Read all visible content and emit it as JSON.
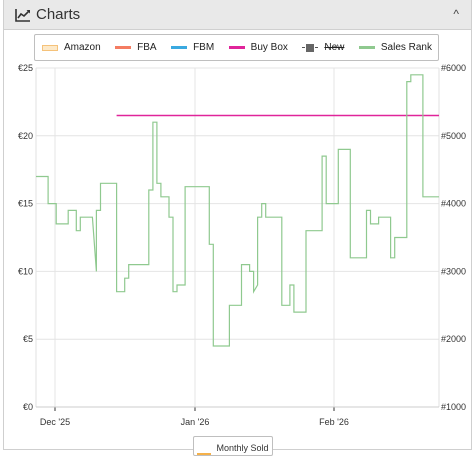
{
  "header": {
    "title": "Charts",
    "icon": "line-chart-icon",
    "collapse_icon": "chevron-up-icon",
    "collapse_glyph": "^"
  },
  "legend": [
    {
      "key": "amazon",
      "label": "Amazon",
      "color": "#f5c27a",
      "style": "box",
      "disabled": false
    },
    {
      "key": "fba",
      "label": "FBA",
      "color": "#f47c62",
      "style": "line",
      "disabled": false
    },
    {
      "key": "fbm",
      "label": "FBM",
      "color": "#3aa9e0",
      "style": "line",
      "disabled": false
    },
    {
      "key": "buybox",
      "label": "Buy Box",
      "color": "#e0249a",
      "style": "line",
      "disabled": false
    },
    {
      "key": "new",
      "label": "New",
      "color": "#666666",
      "style": "marker",
      "disabled": true
    },
    {
      "key": "salesrank",
      "label": "Sales Rank",
      "color": "#8fc98f",
      "style": "line",
      "disabled": false
    }
  ],
  "bottom_legend": {
    "label": "Monthly Sold",
    "color": "#f5b14a"
  },
  "chart_data": {
    "type": "line",
    "x_labels": [
      "Dec '25",
      "Jan '26",
      "Feb '26"
    ],
    "y_left": {
      "ticks": [
        "€0",
        "€5",
        "€10",
        "€15",
        "€20",
        "€25"
      ],
      "min": 0,
      "max": 25
    },
    "y_right": {
      "ticks": [
        "#1000",
        "#2000",
        "#3000",
        "#4000",
        "#5000",
        "#6000"
      ],
      "min": 1000,
      "max": 6000
    },
    "grid": true,
    "series": [
      {
        "name": "Buy Box",
        "color": "#e0249a",
        "axis": "left",
        "points": [
          [
            0.2,
            21.5
          ],
          [
            1.0,
            21.5
          ]
        ]
      },
      {
        "name": "Sales Rank",
        "color": "#8fc98f",
        "axis": "right",
        "points": [
          [
            0.0,
            4400
          ],
          [
            0.03,
            4400
          ],
          [
            0.03,
            4000
          ],
          [
            0.05,
            4000
          ],
          [
            0.05,
            3700
          ],
          [
            0.08,
            3700
          ],
          [
            0.08,
            3900
          ],
          [
            0.1,
            3900
          ],
          [
            0.1,
            3600
          ],
          [
            0.11,
            3600
          ],
          [
            0.11,
            3800
          ],
          [
            0.14,
            3800
          ],
          [
            0.14,
            3800
          ],
          [
            0.15,
            3000
          ],
          [
            0.15,
            3900
          ],
          [
            0.16,
            3900
          ],
          [
            0.16,
            4300
          ],
          [
            0.2,
            4300
          ],
          [
            0.2,
            2700
          ],
          [
            0.22,
            2700
          ],
          [
            0.22,
            2900
          ],
          [
            0.23,
            2900
          ],
          [
            0.23,
            3100
          ],
          [
            0.28,
            3100
          ],
          [
            0.28,
            4200
          ],
          [
            0.29,
            4200
          ],
          [
            0.29,
            5200
          ],
          [
            0.3,
            5200
          ],
          [
            0.3,
            4300
          ],
          [
            0.31,
            4300
          ],
          [
            0.31,
            4100
          ],
          [
            0.33,
            4100
          ],
          [
            0.33,
            3800
          ],
          [
            0.34,
            3800
          ],
          [
            0.34,
            2700
          ],
          [
            0.35,
            2700
          ],
          [
            0.35,
            2800
          ],
          [
            0.37,
            2800
          ],
          [
            0.37,
            3200
          ],
          [
            0.37,
            4250
          ],
          [
            0.43,
            4250
          ],
          [
            0.43,
            3400
          ],
          [
            0.44,
            3400
          ],
          [
            0.44,
            1900
          ],
          [
            0.48,
            1900
          ],
          [
            0.48,
            2500
          ],
          [
            0.51,
            2500
          ],
          [
            0.51,
            3100
          ],
          [
            0.53,
            3100
          ],
          [
            0.53,
            3000
          ],
          [
            0.54,
            3000
          ],
          [
            0.54,
            2700
          ],
          [
            0.55,
            2800
          ],
          [
            0.55,
            3800
          ],
          [
            0.56,
            3800
          ],
          [
            0.56,
            4000
          ],
          [
            0.57,
            4000
          ],
          [
            0.57,
            3800
          ],
          [
            0.61,
            3800
          ],
          [
            0.61,
            2500
          ],
          [
            0.63,
            2500
          ],
          [
            0.63,
            2800
          ],
          [
            0.64,
            2800
          ],
          [
            0.64,
            2400
          ],
          [
            0.67,
            2400
          ],
          [
            0.67,
            3600
          ],
          [
            0.71,
            3600
          ],
          [
            0.71,
            4700
          ],
          [
            0.72,
            4700
          ],
          [
            0.72,
            4000
          ],
          [
            0.75,
            4000
          ],
          [
            0.75,
            4800
          ],
          [
            0.78,
            4800
          ],
          [
            0.78,
            3200
          ],
          [
            0.82,
            3200
          ],
          [
            0.82,
            3900
          ],
          [
            0.83,
            3900
          ],
          [
            0.83,
            3700
          ],
          [
            0.85,
            3700
          ],
          [
            0.85,
            3800
          ],
          [
            0.88,
            3800
          ],
          [
            0.88,
            3200
          ],
          [
            0.89,
            3200
          ],
          [
            0.89,
            3500
          ],
          [
            0.92,
            3500
          ],
          [
            0.92,
            5800
          ],
          [
            0.93,
            5800
          ],
          [
            0.93,
            5900
          ],
          [
            0.96,
            5900
          ],
          [
            0.96,
            4100
          ],
          [
            1.0,
            4100
          ]
        ]
      }
    ]
  }
}
